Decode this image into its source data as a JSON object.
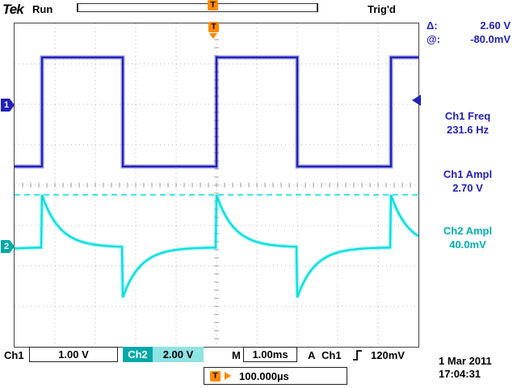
{
  "colors": {
    "ch1": "#2121bb",
    "ch2_trace": "#00dede",
    "ch2_text": "#00b0b0",
    "cursor_text": "#2121bb",
    "orange": "#ff8a00",
    "teal_box": "#00a8a8",
    "teal_box_light": "#8fe3e3"
  },
  "header": {
    "logo": "Tek",
    "acq_status": "Run",
    "trig_status": "Trig'd"
  },
  "trigger_marker": "T",
  "channel_markers": {
    "ch1": "1",
    "ch2": "2"
  },
  "cursors": {
    "delta_label": "Δ:",
    "delta_value": "2.60 V",
    "at_label": "@:",
    "at_value": "-80.0mV"
  },
  "measurements": [
    {
      "label": "Ch1 Freq",
      "value": "231.6 Hz",
      "channel": "ch1"
    },
    {
      "label": "Ch1 Ampl",
      "value": "2.70 V",
      "channel": "ch1"
    },
    {
      "label": "Ch2 Ampl",
      "value": "40.0mV",
      "channel": "ch2"
    }
  ],
  "statusbar": {
    "ch1_label": "Ch1",
    "ch1_scale": "1.00 V",
    "ch2_label": "Ch2",
    "ch2_scale": "2.00 V",
    "m_label": "M",
    "m_scale": "1.00ms",
    "trig_mode": "A",
    "trig_source": "Ch1",
    "trig_level": "120mV"
  },
  "datetime": {
    "date": "1 Mar 2011",
    "time": "17:04:31"
  },
  "delay": {
    "value": "100.000µs"
  },
  "chart_data": {
    "type": "line",
    "title": "Oscilloscope waveform display",
    "x_divisions": 10,
    "y_divisions": 8,
    "timebase_ms_per_div": 1.0,
    "series": [
      {
        "name": "Ch1",
        "waveform": "square",
        "volts_per_div": 1.0,
        "frequency_hz": 231.6,
        "amplitude_vpp": 2.7,
        "period_ms": 4.32,
        "high_time_ms": 2.0,
        "high_level_div_from_top": 0.84,
        "low_level_div_from_top": 3.54,
        "trigger_edge": "rising",
        "trigger_x_div": 5.0
      },
      {
        "name": "Ch2",
        "waveform": "rc_differentiated",
        "volts_per_div": 2.0,
        "measured_ampl": "40.0mV",
        "baseline_div_from_top": 5.54,
        "positive_peak_div": 1.3,
        "negative_peak_div": 1.24,
        "tau_ms": 0.44
      }
    ],
    "cursor_lines": [
      {
        "y_div_from_top": 4.24,
        "style": "dashed",
        "channel": "ch2"
      }
    ]
  }
}
